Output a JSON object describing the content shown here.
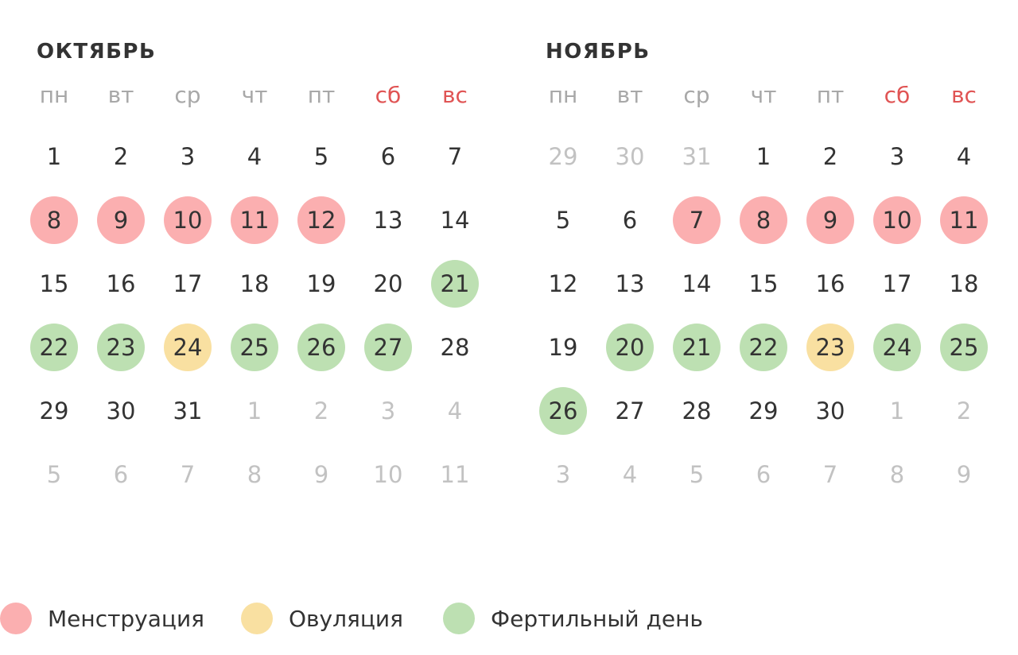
{
  "weekdays": [
    {
      "label": "пн",
      "weekend": false
    },
    {
      "label": "вт",
      "weekend": false
    },
    {
      "label": "ср",
      "weekend": false
    },
    {
      "label": "чт",
      "weekend": false
    },
    {
      "label": "пт",
      "weekend": false
    },
    {
      "label": "сб",
      "weekend": true
    },
    {
      "label": "вс",
      "weekend": true
    }
  ],
  "colors": {
    "menstruation": "#fbafb0",
    "ovulation": "#f9e0a1",
    "fertile": "#bde0b2",
    "weekend": "#e05454",
    "outside_day": "#c2c2c2",
    "weekday_label": "#a8a8a8"
  },
  "months": [
    {
      "title": "ОКТЯБРЬ",
      "weeks": [
        [
          {
            "d": "1"
          },
          {
            "d": "2"
          },
          {
            "d": "3"
          },
          {
            "d": "4"
          },
          {
            "d": "5"
          },
          {
            "d": "6"
          },
          {
            "d": "7"
          }
        ],
        [
          {
            "d": "8",
            "type": "menstruation"
          },
          {
            "d": "9",
            "type": "menstruation"
          },
          {
            "d": "10",
            "type": "menstruation"
          },
          {
            "d": "11",
            "type": "menstruation"
          },
          {
            "d": "12",
            "type": "menstruation"
          },
          {
            "d": "13"
          },
          {
            "d": "14"
          }
        ],
        [
          {
            "d": "15"
          },
          {
            "d": "16"
          },
          {
            "d": "17"
          },
          {
            "d": "18"
          },
          {
            "d": "19"
          },
          {
            "d": "20"
          },
          {
            "d": "21",
            "type": "fertile"
          }
        ],
        [
          {
            "d": "22",
            "type": "fertile"
          },
          {
            "d": "23",
            "type": "fertile"
          },
          {
            "d": "24",
            "type": "ovulation"
          },
          {
            "d": "25",
            "type": "fertile"
          },
          {
            "d": "26",
            "type": "fertile"
          },
          {
            "d": "27",
            "type": "fertile"
          },
          {
            "d": "28"
          }
        ],
        [
          {
            "d": "29"
          },
          {
            "d": "30"
          },
          {
            "d": "31"
          },
          {
            "d": "1",
            "outside": true
          },
          {
            "d": "2",
            "outside": true
          },
          {
            "d": "3",
            "outside": true
          },
          {
            "d": "4",
            "outside": true
          }
        ],
        [
          {
            "d": "5",
            "outside": true
          },
          {
            "d": "6",
            "outside": true
          },
          {
            "d": "7",
            "outside": true
          },
          {
            "d": "8",
            "outside": true
          },
          {
            "d": "9",
            "outside": true
          },
          {
            "d": "10",
            "outside": true
          },
          {
            "d": "11",
            "outside": true
          }
        ]
      ]
    },
    {
      "title": "НОЯБРЬ",
      "weeks": [
        [
          {
            "d": "29",
            "outside": true
          },
          {
            "d": "30",
            "outside": true
          },
          {
            "d": "31",
            "outside": true
          },
          {
            "d": "1"
          },
          {
            "d": "2"
          },
          {
            "d": "3"
          },
          {
            "d": "4"
          }
        ],
        [
          {
            "d": "5"
          },
          {
            "d": "6"
          },
          {
            "d": "7",
            "type": "menstruation"
          },
          {
            "d": "8",
            "type": "menstruation"
          },
          {
            "d": "9",
            "type": "menstruation"
          },
          {
            "d": "10",
            "type": "menstruation"
          },
          {
            "d": "11",
            "type": "menstruation"
          }
        ],
        [
          {
            "d": "12"
          },
          {
            "d": "13"
          },
          {
            "d": "14"
          },
          {
            "d": "15"
          },
          {
            "d": "16"
          },
          {
            "d": "17"
          },
          {
            "d": "18"
          }
        ],
        [
          {
            "d": "19"
          },
          {
            "d": "20",
            "type": "fertile"
          },
          {
            "d": "21",
            "type": "fertile"
          },
          {
            "d": "22",
            "type": "fertile"
          },
          {
            "d": "23",
            "type": "ovulation"
          },
          {
            "d": "24",
            "type": "fertile"
          },
          {
            "d": "25",
            "type": "fertile"
          }
        ],
        [
          {
            "d": "26",
            "type": "fertile"
          },
          {
            "d": "27"
          },
          {
            "d": "28"
          },
          {
            "d": "29"
          },
          {
            "d": "30"
          },
          {
            "d": "1",
            "outside": true
          },
          {
            "d": "2",
            "outside": true
          }
        ],
        [
          {
            "d": "3",
            "outside": true
          },
          {
            "d": "4",
            "outside": true
          },
          {
            "d": "5",
            "outside": true
          },
          {
            "d": "6",
            "outside": true
          },
          {
            "d": "7",
            "outside": true
          },
          {
            "d": "8",
            "outside": true
          },
          {
            "d": "9",
            "outside": true
          }
        ]
      ]
    }
  ],
  "legend": [
    {
      "key": "menstruation",
      "label": "Менструация"
    },
    {
      "key": "ovulation",
      "label": "Овуляция"
    },
    {
      "key": "fertile",
      "label": "Фертильный день"
    }
  ]
}
